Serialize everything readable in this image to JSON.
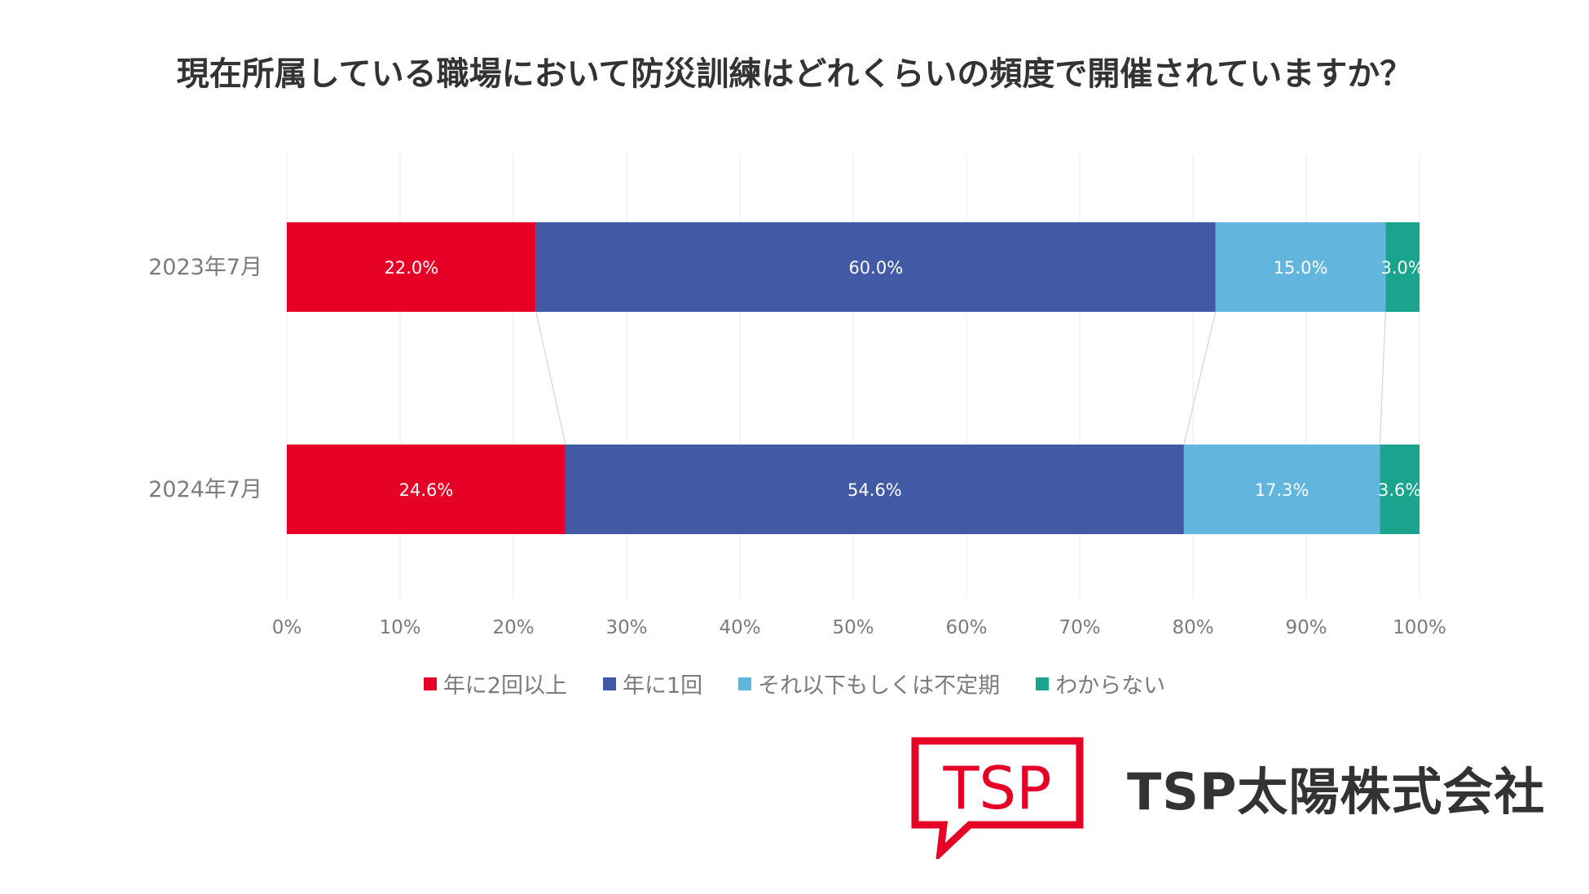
{
  "chart_data": {
    "type": "bar",
    "orientation": "horizontal",
    "stacked": "percent",
    "title": "現在所属している職場において防災訓練はどれくらいの頻度で開催されていますか？",
    "categories": [
      "2023年7月",
      "2024年7月"
    ],
    "series": [
      {
        "name": "年に2回以上",
        "values": [
          22.0,
          24.6
        ],
        "labels": [
          "22.0%",
          "24.6%"
        ],
        "color": "#e60026"
      },
      {
        "name": "年に1回",
        "values": [
          60.0,
          54.6
        ],
        "labels": [
          "60.0%",
          "54.6%"
        ],
        "color": "#425aa6"
      },
      {
        "name": "それ以下もしくは不定期",
        "values": [
          15.0,
          17.3
        ],
        "labels": [
          "15.0%",
          "17.3%"
        ],
        "color": "#62b5dc"
      },
      {
        "name": "わからない",
        "values": [
          3.0,
          3.6
        ],
        "labels": [
          "3.0%",
          "3.6%"
        ],
        "color": "#1aa38d"
      }
    ],
    "xlim": [
      0,
      100
    ],
    "xticks": [
      "0%",
      "10%",
      "20%",
      "30%",
      "40%",
      "50%",
      "60%",
      "70%",
      "80%",
      "90%",
      "100%"
    ],
    "grid": true,
    "legend_position": "bottom",
    "xlabel": "",
    "ylabel": ""
  },
  "brand": {
    "logo_text": "TSP",
    "company": "TSP太陽株式会社",
    "logo_color": "#e60026"
  }
}
